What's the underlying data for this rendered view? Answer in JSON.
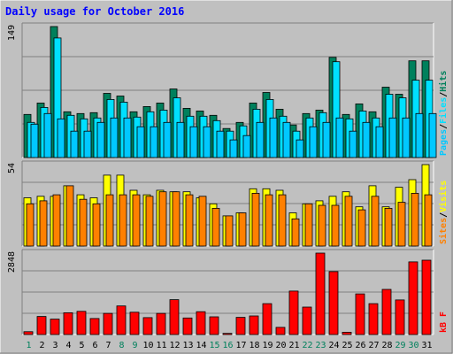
{
  "title": "Daily usage for October 2016",
  "colors": {
    "background": "#c0c0c0",
    "title": "#0000ff",
    "hits": "#00805c",
    "files": "#00e0ff",
    "pages": "#00c8ff",
    "visits": "#ffff00",
    "sites": "#ff8000",
    "kbytes": "#ff0000"
  },
  "chart_data": [
    {
      "type": "bar",
      "panel": "hits-files-pages",
      "ymax_label": "149",
      "ylim": [
        0,
        149
      ],
      "categories": [
        "1",
        "2",
        "3",
        "4",
        "5",
        "6",
        "7",
        "8",
        "9",
        "10",
        "11",
        "12",
        "13",
        "14",
        "15",
        "16",
        "17",
        "18",
        "19",
        "20",
        "21",
        "22",
        "23",
        "24",
        "25",
        "26",
        "27",
        "28",
        "29",
        "30",
        "31"
      ],
      "series": [
        {
          "name": "Hits",
          "values": [
            49,
            62,
            149,
            52,
            50,
            51,
            73,
            70,
            52,
            58,
            62,
            78,
            56,
            53,
            48,
            33,
            40,
            62,
            74,
            55,
            37,
            50,
            54,
            114,
            49,
            61,
            52,
            80,
            72,
            110,
            110
          ]
        },
        {
          "name": "Files",
          "values": [
            40,
            57,
            136,
            48,
            44,
            45,
            66,
            63,
            46,
            52,
            54,
            68,
            47,
            47,
            42,
            30,
            36,
            55,
            66,
            47,
            30,
            45,
            51,
            109,
            44,
            53,
            45,
            72,
            68,
            88,
            88
          ]
        },
        {
          "name": "Pages",
          "values": [
            38,
            50,
            44,
            30,
            30,
            40,
            45,
            45,
            35,
            35,
            40,
            40,
            35,
            35,
            30,
            20,
            25,
            40,
            45,
            40,
            20,
            35,
            40,
            45,
            30,
            40,
            35,
            45,
            45,
            50,
            50
          ]
        }
      ],
      "legend": [
        "Pages",
        "/",
        "Files",
        "/",
        "Hits"
      ]
    },
    {
      "type": "bar",
      "panel": "visits-sites",
      "ymax_label": "54",
      "ylim": [
        0,
        54
      ],
      "categories": [
        "1",
        "2",
        "3",
        "4",
        "5",
        "6",
        "7",
        "8",
        "9",
        "10",
        "11",
        "12",
        "13",
        "14",
        "15",
        "16",
        "17",
        "18",
        "19",
        "20",
        "21",
        "22",
        "23",
        "24",
        "25",
        "26",
        "27",
        "28",
        "29",
        "30",
        "31"
      ],
      "series": [
        {
          "name": "Visits",
          "values": [
            32,
            33,
            33,
            40,
            34,
            32,
            47,
            47,
            37,
            34,
            37,
            36,
            36,
            32,
            28,
            20,
            22,
            38,
            38,
            37,
            22,
            28,
            30,
            33,
            36,
            26,
            40,
            26,
            39,
            44,
            54
          ]
        },
        {
          "name": "Sites",
          "values": [
            28,
            30,
            34,
            40,
            31,
            28,
            34,
            34,
            34,
            33,
            36,
            36,
            34,
            33,
            25,
            20,
            22,
            35,
            34,
            34,
            18,
            28,
            27,
            27,
            33,
            24,
            33,
            25,
            29,
            35,
            34
          ]
        }
      ],
      "legend": [
        "Sites",
        "/",
        "Visits"
      ]
    },
    {
      "type": "bar",
      "panel": "kbytes",
      "ymax_label": "2848",
      "ylim": [
        0,
        2848
      ],
      "categories": [
        "1",
        "2",
        "3",
        "4",
        "5",
        "6",
        "7",
        "8",
        "9",
        "10",
        "11",
        "12",
        "13",
        "14",
        "15",
        "16",
        "17",
        "18",
        "19",
        "20",
        "21",
        "22",
        "23",
        "24",
        "25",
        "26",
        "27",
        "28",
        "29",
        "30",
        "31"
      ],
      "series": [
        {
          "name": "kB F",
          "values": [
            100,
            630,
            540,
            760,
            810,
            560,
            740,
            1000,
            780,
            590,
            740,
            1220,
            580,
            800,
            620,
            40,
            600,
            650,
            1080,
            250,
            1520,
            960,
            2848,
            2200,
            80,
            1420,
            1080,
            1580,
            1210,
            2540,
            2600
          ]
        }
      ],
      "legend": [
        "kB F"
      ]
    }
  ],
  "day_labels": [
    "1",
    "2",
    "3",
    "4",
    "5",
    "6",
    "7",
    "8",
    "9",
    "10",
    "11",
    "12",
    "13",
    "14",
    "15",
    "16",
    "17",
    "18",
    "19",
    "20",
    "21",
    "22",
    "23",
    "24",
    "25",
    "26",
    "27",
    "28",
    "29",
    "30",
    "31"
  ],
  "weekend_days": [
    "1",
    "8",
    "9",
    "15",
    "16",
    "22",
    "23",
    "29",
    "30"
  ]
}
